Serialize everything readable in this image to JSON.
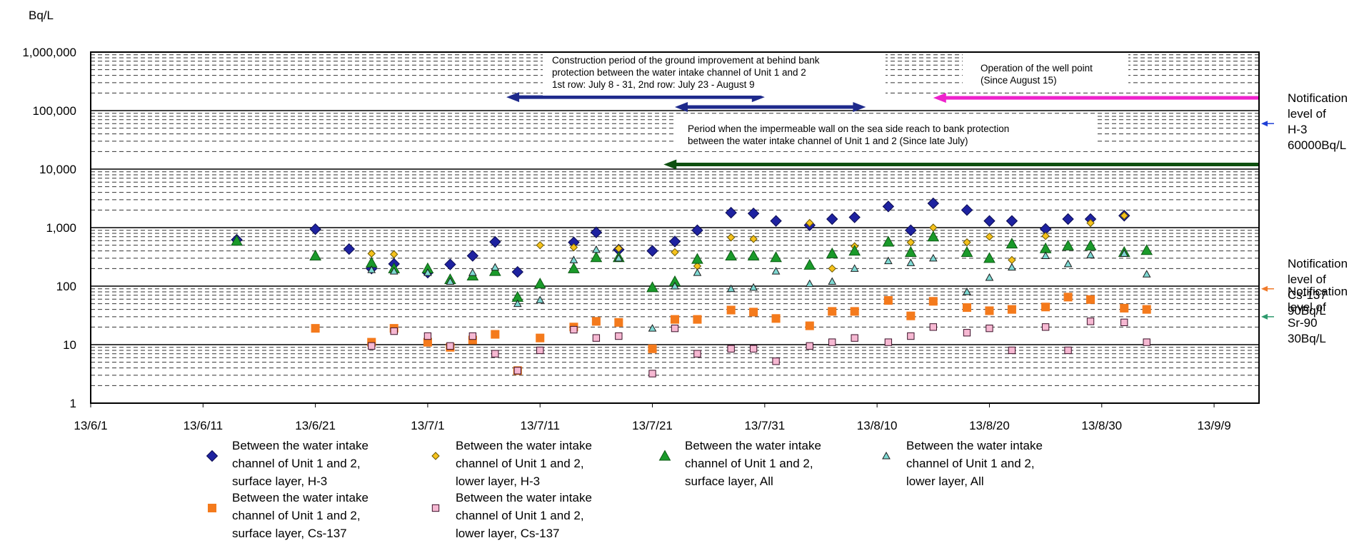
{
  "chart_data": {
    "type": "scatter",
    "yscale": "log",
    "ylim": [
      1,
      1000000
    ],
    "ylabel": "Bq/L",
    "xlim": [
      "2013-06-01",
      "2013-09-13"
    ],
    "x_tick_labels": [
      "13/6/1",
      "13/6/11",
      "13/6/21",
      "13/7/1",
      "13/7/11",
      "13/7/21",
      "13/7/31",
      "13/8/10",
      "13/8/20",
      "13/8/30",
      "13/9/9"
    ],
    "y_tick_labels": [
      "1",
      "10",
      "100",
      "1,000",
      "10,000",
      "100,000",
      "1,000,000"
    ],
    "grid": true,
    "legend_position": "bottom",
    "annotations": {
      "construction": [
        "Construction period of the ground improvement at behind bank",
        "protection between the water intake channel of Unit 1 and 2",
        "1st row: July 8 - 31, 2nd row: July 23 - August 9"
      ],
      "well_point": [
        "Operation of the well point",
        "(Since August 15)"
      ],
      "impermeable_wall": [
        "Period when the impermeable wall on the sea side reach to bank protection",
        "between the water intake channel of Unit 1 and 2 (Since late July)"
      ]
    },
    "notification_levels": [
      {
        "lines": [
          "Notification",
          "level of",
          "H-3",
          "60000Bq/L"
        ],
        "value": 60000,
        "color": "#1f3fd6"
      },
      {
        "lines": [
          "Notification",
          "level of",
          "Cs-137",
          "90Bq/L"
        ],
        "value": 90,
        "color": "#f07a2a"
      },
      {
        "lines": [
          "Notification",
          "level of",
          "Sr-90",
          "30Bq/L"
        ],
        "value": 30,
        "color": "#2e9a6e"
      }
    ],
    "periods": [
      {
        "start": "2013-07-08",
        "end": "2013-07-31",
        "value": 170000,
        "color": "#1e2a8c"
      },
      {
        "start": "2013-07-23",
        "end": "2013-08-09",
        "value": 115000,
        "color": "#1e2a8c"
      },
      {
        "start": "2013-08-15",
        "end": "2013-09-13",
        "value": 165000,
        "color": "#ee22cc"
      },
      {
        "start": "2013-07-22",
        "end": "2013-09-13",
        "value": 12000,
        "color": "#0e5010"
      }
    ],
    "series": [
      {
        "name": "Between the water intake channel of Unit 1 and 2, surface layer, H-3",
        "marker": "diamond",
        "fill": "#1e22a0",
        "stroke": "#0b0b50",
        "points": [
          [
            "2013-06-14",
            620
          ],
          [
            "2013-06-21",
            940
          ],
          [
            "2013-06-24",
            430
          ],
          [
            "2013-06-26",
            200
          ],
          [
            "2013-06-28",
            240
          ],
          [
            "2013-07-01",
            170
          ],
          [
            "2013-07-03",
            235
          ],
          [
            "2013-07-05",
            330
          ],
          [
            "2013-07-07",
            570
          ],
          [
            "2013-07-09",
            175
          ],
          [
            "2013-07-14",
            560
          ],
          [
            "2013-07-16",
            830
          ],
          [
            "2013-07-18",
            420
          ],
          [
            "2013-07-21",
            400
          ],
          [
            "2013-07-23",
            580
          ],
          [
            "2013-07-25",
            900
          ],
          [
            "2013-07-28",
            1800
          ],
          [
            "2013-07-30",
            1750
          ],
          [
            "2013-08-01",
            1300
          ],
          [
            "2013-08-04",
            1100
          ],
          [
            "2013-08-06",
            1400
          ],
          [
            "2013-08-08",
            1500
          ],
          [
            "2013-08-11",
            2300
          ],
          [
            "2013-08-13",
            900
          ],
          [
            "2013-08-15",
            2600
          ],
          [
            "2013-08-18",
            2000
          ],
          [
            "2013-08-20",
            1300
          ],
          [
            "2013-08-22",
            1300
          ],
          [
            "2013-08-25",
            950
          ],
          [
            "2013-08-27",
            1400
          ],
          [
            "2013-08-29",
            1400
          ],
          [
            "2013-09-01",
            1600
          ]
        ]
      },
      {
        "name": "Between the water intake channel of Unit 1 and 2, lower layer, H-3",
        "marker": "diamond",
        "fill": "#f6c21c",
        "stroke": "#6b5800",
        "points": [
          [
            "2013-06-26",
            360
          ],
          [
            "2013-06-28",
            350
          ],
          [
            "2013-07-11",
            500
          ],
          [
            "2013-07-14",
            460
          ],
          [
            "2013-07-18",
            440
          ],
          [
            "2013-07-23",
            380
          ],
          [
            "2013-07-25",
            220
          ],
          [
            "2013-07-28",
            680
          ],
          [
            "2013-07-30",
            640
          ],
          [
            "2013-08-04",
            1200
          ],
          [
            "2013-08-06",
            200
          ],
          [
            "2013-08-08",
            480
          ],
          [
            "2013-08-13",
            560
          ],
          [
            "2013-08-15",
            1000
          ],
          [
            "2013-08-18",
            560
          ],
          [
            "2013-08-20",
            700
          ],
          [
            "2013-08-22",
            280
          ],
          [
            "2013-08-25",
            720
          ],
          [
            "2013-08-29",
            1200
          ],
          [
            "2013-09-01",
            1600
          ]
        ]
      },
      {
        "name": "Between the water intake channel of Unit 1 and 2, surface layer, All",
        "marker": "triangle",
        "fill": "#1a9a2a",
        "stroke": "#0d5a15",
        "points": [
          [
            "2013-06-14",
            590
          ],
          [
            "2013-06-21",
            330
          ],
          [
            "2013-06-26",
            250
          ],
          [
            "2013-06-28",
            200
          ],
          [
            "2013-07-01",
            200
          ],
          [
            "2013-07-03",
            130
          ],
          [
            "2013-07-05",
            150
          ],
          [
            "2013-07-07",
            180
          ],
          [
            "2013-07-09",
            65
          ],
          [
            "2013-07-11",
            110
          ],
          [
            "2013-07-14",
            200
          ],
          [
            "2013-07-16",
            310
          ],
          [
            "2013-07-18",
            310
          ],
          [
            "2013-07-21",
            95
          ],
          [
            "2013-07-23",
            120
          ],
          [
            "2013-07-25",
            290
          ],
          [
            "2013-07-28",
            330
          ],
          [
            "2013-07-30",
            330
          ],
          [
            "2013-08-01",
            310
          ],
          [
            "2013-08-04",
            230
          ],
          [
            "2013-08-06",
            360
          ],
          [
            "2013-08-08",
            400
          ],
          [
            "2013-08-11",
            570
          ],
          [
            "2013-08-13",
            380
          ],
          [
            "2013-08-15",
            700
          ],
          [
            "2013-08-18",
            380
          ],
          [
            "2013-08-20",
            300
          ],
          [
            "2013-08-22",
            530
          ],
          [
            "2013-08-25",
            440
          ],
          [
            "2013-08-27",
            490
          ],
          [
            "2013-08-29",
            490
          ],
          [
            "2013-09-01",
            380
          ],
          [
            "2013-09-03",
            410
          ]
        ]
      },
      {
        "name": "Between the water intake channel of Unit 1 and 2, lower layer, All",
        "marker": "triangle",
        "fill": "#7ed9d3",
        "stroke": "#1b1b1b",
        "points": [
          [
            "2013-06-26",
            190
          ],
          [
            "2013-06-28",
            180
          ],
          [
            "2013-07-01",
            170
          ],
          [
            "2013-07-03",
            120
          ],
          [
            "2013-07-05",
            170
          ],
          [
            "2013-07-07",
            210
          ],
          [
            "2013-07-09",
            50
          ],
          [
            "2013-07-11",
            58
          ],
          [
            "2013-07-14",
            280
          ],
          [
            "2013-07-16",
            420
          ],
          [
            "2013-07-18",
            300
          ],
          [
            "2013-07-21",
            19
          ],
          [
            "2013-07-23",
            100
          ],
          [
            "2013-07-25",
            170
          ],
          [
            "2013-07-28",
            90
          ],
          [
            "2013-07-30",
            95
          ],
          [
            "2013-08-01",
            180
          ],
          [
            "2013-08-04",
            110
          ],
          [
            "2013-08-06",
            120
          ],
          [
            "2013-08-08",
            200
          ],
          [
            "2013-08-11",
            270
          ],
          [
            "2013-08-13",
            250
          ],
          [
            "2013-08-15",
            300
          ],
          [
            "2013-08-18",
            80
          ],
          [
            "2013-08-20",
            140
          ],
          [
            "2013-08-22",
            210
          ],
          [
            "2013-08-25",
            330
          ],
          [
            "2013-08-27",
            240
          ],
          [
            "2013-08-29",
            340
          ],
          [
            "2013-09-01",
            360
          ],
          [
            "2013-09-03",
            160
          ]
        ]
      },
      {
        "name": "Between the water intake channel of Unit 1 and 2, surface layer, Cs-137",
        "marker": "square",
        "fill": "#f47a1c",
        "stroke": "#f47a1c",
        "points": [
          [
            "2013-06-21",
            19
          ],
          [
            "2013-06-26",
            11
          ],
          [
            "2013-06-28",
            19
          ],
          [
            "2013-07-01",
            11
          ],
          [
            "2013-07-03",
            9
          ],
          [
            "2013-07-05",
            12
          ],
          [
            "2013-07-07",
            15
          ],
          [
            "2013-07-09",
            3.6
          ],
          [
            "2013-07-11",
            13
          ],
          [
            "2013-07-14",
            20
          ],
          [
            "2013-07-16",
            25
          ],
          [
            "2013-07-18",
            24
          ],
          [
            "2013-07-21",
            8.5
          ],
          [
            "2013-07-23",
            27
          ],
          [
            "2013-07-25",
            27
          ],
          [
            "2013-07-28",
            39
          ],
          [
            "2013-07-30",
            36
          ],
          [
            "2013-08-01",
            28
          ],
          [
            "2013-08-04",
            21
          ],
          [
            "2013-08-06",
            37
          ],
          [
            "2013-08-08",
            37
          ],
          [
            "2013-08-11",
            57
          ],
          [
            "2013-08-13",
            31
          ],
          [
            "2013-08-15",
            55
          ],
          [
            "2013-08-18",
            43
          ],
          [
            "2013-08-20",
            38
          ],
          [
            "2013-08-22",
            40
          ],
          [
            "2013-08-25",
            44
          ],
          [
            "2013-08-27",
            65
          ],
          [
            "2013-08-29",
            59
          ],
          [
            "2013-09-01",
            42
          ],
          [
            "2013-09-03",
            40
          ]
        ]
      },
      {
        "name": "Between the water intake channel of Unit 1 and 2, lower layer, Cs-137",
        "marker": "square",
        "fill": "#f6b8d2",
        "stroke": "#3b1028",
        "points": [
          [
            "2013-06-26",
            9.5
          ],
          [
            "2013-06-28",
            17
          ],
          [
            "2013-07-01",
            14
          ],
          [
            "2013-07-03",
            9.5
          ],
          [
            "2013-07-05",
            14
          ],
          [
            "2013-07-07",
            7
          ],
          [
            "2013-07-09",
            3.6
          ],
          [
            "2013-07-11",
            8
          ],
          [
            "2013-07-14",
            18
          ],
          [
            "2013-07-16",
            13
          ],
          [
            "2013-07-18",
            14
          ],
          [
            "2013-07-21",
            3.2
          ],
          [
            "2013-07-23",
            19
          ],
          [
            "2013-07-25",
            7
          ],
          [
            "2013-07-28",
            8.5
          ],
          [
            "2013-07-30",
            8.5
          ],
          [
            "2013-08-01",
            5.2
          ],
          [
            "2013-08-04",
            9.5
          ],
          [
            "2013-08-06",
            11
          ],
          [
            "2013-08-08",
            13
          ],
          [
            "2013-08-11",
            11
          ],
          [
            "2013-08-13",
            14
          ],
          [
            "2013-08-15",
            20
          ],
          [
            "2013-08-18",
            16
          ],
          [
            "2013-08-20",
            19
          ],
          [
            "2013-08-22",
            8
          ],
          [
            "2013-08-25",
            20
          ],
          [
            "2013-08-27",
            8
          ],
          [
            "2013-08-29",
            25
          ],
          [
            "2013-09-01",
            24
          ],
          [
            "2013-09-03",
            11
          ]
        ]
      }
    ],
    "legend": [
      {
        "series": 0,
        "lines": [
          "Between the water intake",
          "channel of Unit 1 and 2,",
          "surface layer, H-3"
        ]
      },
      {
        "series": 1,
        "lines": [
          "Between the water intake",
          "channel of Unit 1 and 2,",
          "lower layer, H-3"
        ]
      },
      {
        "series": 2,
        "lines": [
          "Between the water intake",
          "channel of Unit 1 and 2,",
          "surface layer, All"
        ]
      },
      {
        "series": 3,
        "lines": [
          "Between the water intake",
          "channel of Unit 1 and 2,",
          "lower layer, All"
        ]
      },
      {
        "series": 4,
        "lines": [
          "Between the water intake",
          "channel of Unit 1 and 2,",
          "surface layer, Cs-137"
        ]
      },
      {
        "series": 5,
        "lines": [
          "Between the water intake",
          "channel of Unit 1 and 2,",
          "lower layer, Cs-137"
        ]
      }
    ]
  }
}
